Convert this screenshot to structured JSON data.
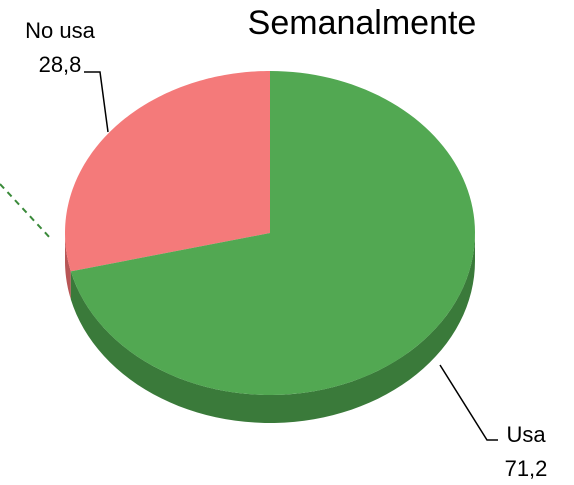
{
  "chart_data": {
    "type": "pie3d",
    "title": "Semanalmente",
    "categories": [
      "No usa",
      "Usa"
    ],
    "values": [
      28.8,
      71.2
    ],
    "value_labels": [
      "28,8",
      "71,2"
    ],
    "colors": [
      "#f47a7a",
      "#52a852"
    ],
    "side_colors": [
      "#b85656",
      "#3a7a3a"
    ]
  }
}
